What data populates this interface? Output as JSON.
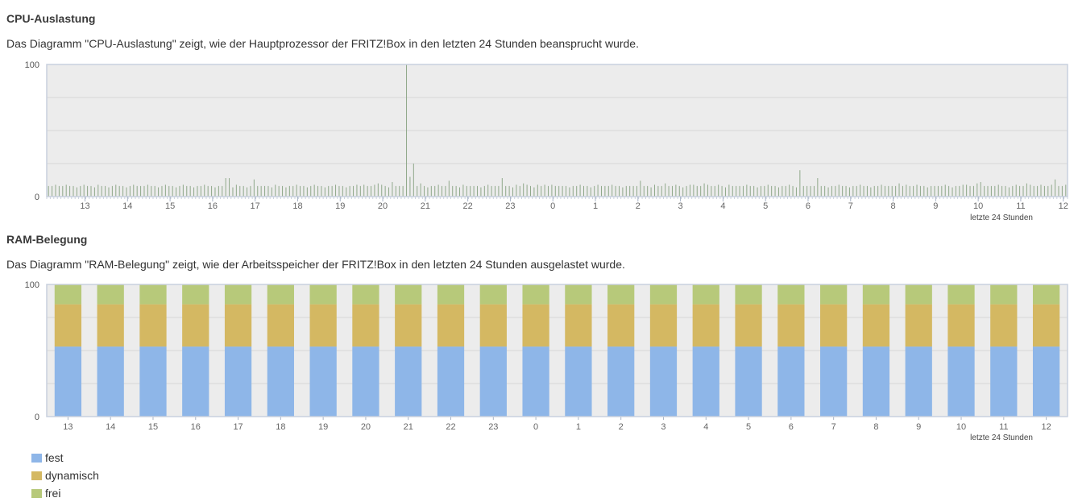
{
  "cpu": {
    "title": "CPU-Auslastung",
    "description": "Das Diagramm \"CPU-Auslastung\" zeigt, wie der Hauptprozessor der FRITZ!Box in den letzten 24 Stunden beansprucht wurde."
  },
  "ram": {
    "title": "RAM-Belegung",
    "description": "Das Diagramm \"RAM-Belegung\" zeigt, wie der Arbeitsspeicher der FRITZ!Box in den letzten 24 Stunden ausgelastet wurde."
  },
  "colors": {
    "fest": "#8eb6e8",
    "dynamisch": "#d4b862",
    "frei": "#b7c97a",
    "cpu_bar": "#8fa88a",
    "plot_bg": "#ececec",
    "plot_border": "#c8d0de"
  },
  "chart_data": [
    {
      "type": "bar",
      "title": "CPU-Auslastung",
      "ylim": [
        0,
        100
      ],
      "y_ticks": [
        0,
        100
      ],
      "x_ticks": [
        "13",
        "14",
        "15",
        "16",
        "17",
        "18",
        "19",
        "20",
        "21",
        "22",
        "23",
        "0",
        "1",
        "2",
        "3",
        "4",
        "5",
        "6",
        "7",
        "8",
        "9",
        "10",
        "11",
        "12"
      ],
      "x_caption": "letzte 24 Stunden",
      "grid": true,
      "values": [
        8,
        8,
        9,
        8,
        8,
        9,
        8,
        8,
        7,
        8,
        9,
        8,
        8,
        7,
        9,
        8,
        8,
        7,
        8,
        9,
        8,
        8,
        7,
        8,
        9,
        8,
        8,
        8,
        9,
        8,
        8,
        7,
        8,
        9,
        8,
        8,
        7,
        8,
        9,
        8,
        8,
        7,
        8,
        8,
        9,
        8,
        8,
        7,
        8,
        8,
        14,
        14,
        7,
        9,
        8,
        8,
        7,
        8,
        13,
        8,
        8,
        8,
        8,
        7,
        9,
        8,
        8,
        7,
        8,
        8,
        9,
        8,
        8,
        7,
        8,
        9,
        8,
        8,
        7,
        8,
        8,
        9,
        8,
        8,
        7,
        8,
        8,
        9,
        8,
        9,
        8,
        8,
        9,
        10,
        9,
        8,
        7,
        11,
        8,
        8,
        8,
        100,
        15,
        25,
        8,
        10,
        8,
        7,
        8,
        8,
        9,
        8,
        8,
        12,
        8,
        8,
        7,
        9,
        8,
        8,
        8,
        8,
        7,
        8,
        9,
        8,
        8,
        8,
        14,
        8,
        8,
        7,
        9,
        8,
        10,
        9,
        8,
        7,
        9,
        8,
        9,
        8,
        9,
        8,
        8,
        8,
        8,
        7,
        8,
        8,
        9,
        8,
        8,
        7,
        8,
        9,
        8,
        8,
        8,
        9,
        8,
        8,
        7,
        8,
        8,
        8,
        8,
        12,
        8,
        8,
        7,
        9,
        8,
        8,
        10,
        8,
        8,
        9,
        8,
        7,
        8,
        9,
        9,
        8,
        8,
        10,
        9,
        8,
        8,
        9,
        8,
        7,
        9,
        8,
        8,
        8,
        8,
        9,
        8,
        8,
        7,
        8,
        8,
        9,
        8,
        8,
        7,
        8,
        8,
        9,
        8,
        7,
        20,
        8,
        8,
        8,
        8,
        14,
        8,
        8,
        7,
        8,
        8,
        9,
        8,
        8,
        7,
        8,
        8,
        9,
        8,
        8,
        7,
        8,
        8,
        9,
        8,
        8,
        8,
        8,
        10,
        8,
        9,
        8,
        8,
        9,
        8,
        8,
        7,
        8,
        8,
        8,
        8,
        9,
        8,
        7,
        8,
        8,
        9,
        9,
        8,
        8,
        10,
        11,
        8,
        8,
        8,
        8,
        9,
        8,
        8,
        7,
        8,
        9,
        8,
        8,
        10,
        9,
        8,
        8,
        9,
        8,
        8,
        9,
        13,
        8,
        8,
        9
      ]
    },
    {
      "type": "bar",
      "title": "RAM-Belegung",
      "ylim": [
        0,
        100
      ],
      "y_ticks": [
        0,
        100
      ],
      "categories": [
        "13",
        "14",
        "15",
        "16",
        "17",
        "18",
        "19",
        "20",
        "21",
        "22",
        "23",
        "0",
        "1",
        "2",
        "3",
        "4",
        "5",
        "6",
        "7",
        "8",
        "9",
        "10",
        "11",
        "12"
      ],
      "x_caption": "letzte 24 Stunden",
      "grid": true,
      "stacked": true,
      "series": [
        {
          "name": "fest",
          "color": "#8eb6e8",
          "values": [
            53,
            53,
            53,
            53,
            53,
            53,
            53,
            53,
            53,
            53,
            53,
            53,
            53,
            53,
            53,
            53,
            53,
            53,
            53,
            53,
            53,
            53,
            53,
            53
          ]
        },
        {
          "name": "dynamisch",
          "color": "#d4b862",
          "values": [
            32,
            32,
            32,
            32,
            32,
            32,
            32,
            32,
            32,
            32,
            32,
            32,
            32,
            32,
            32,
            32,
            32,
            32,
            32,
            32,
            32,
            32,
            32,
            32
          ]
        },
        {
          "name": "frei",
          "color": "#b7c97a",
          "values": [
            15,
            15,
            15,
            15,
            15,
            15,
            15,
            15,
            15,
            15,
            15,
            15,
            15,
            15,
            15,
            15,
            15,
            15,
            15,
            15,
            15,
            15,
            15,
            15
          ]
        }
      ]
    }
  ]
}
